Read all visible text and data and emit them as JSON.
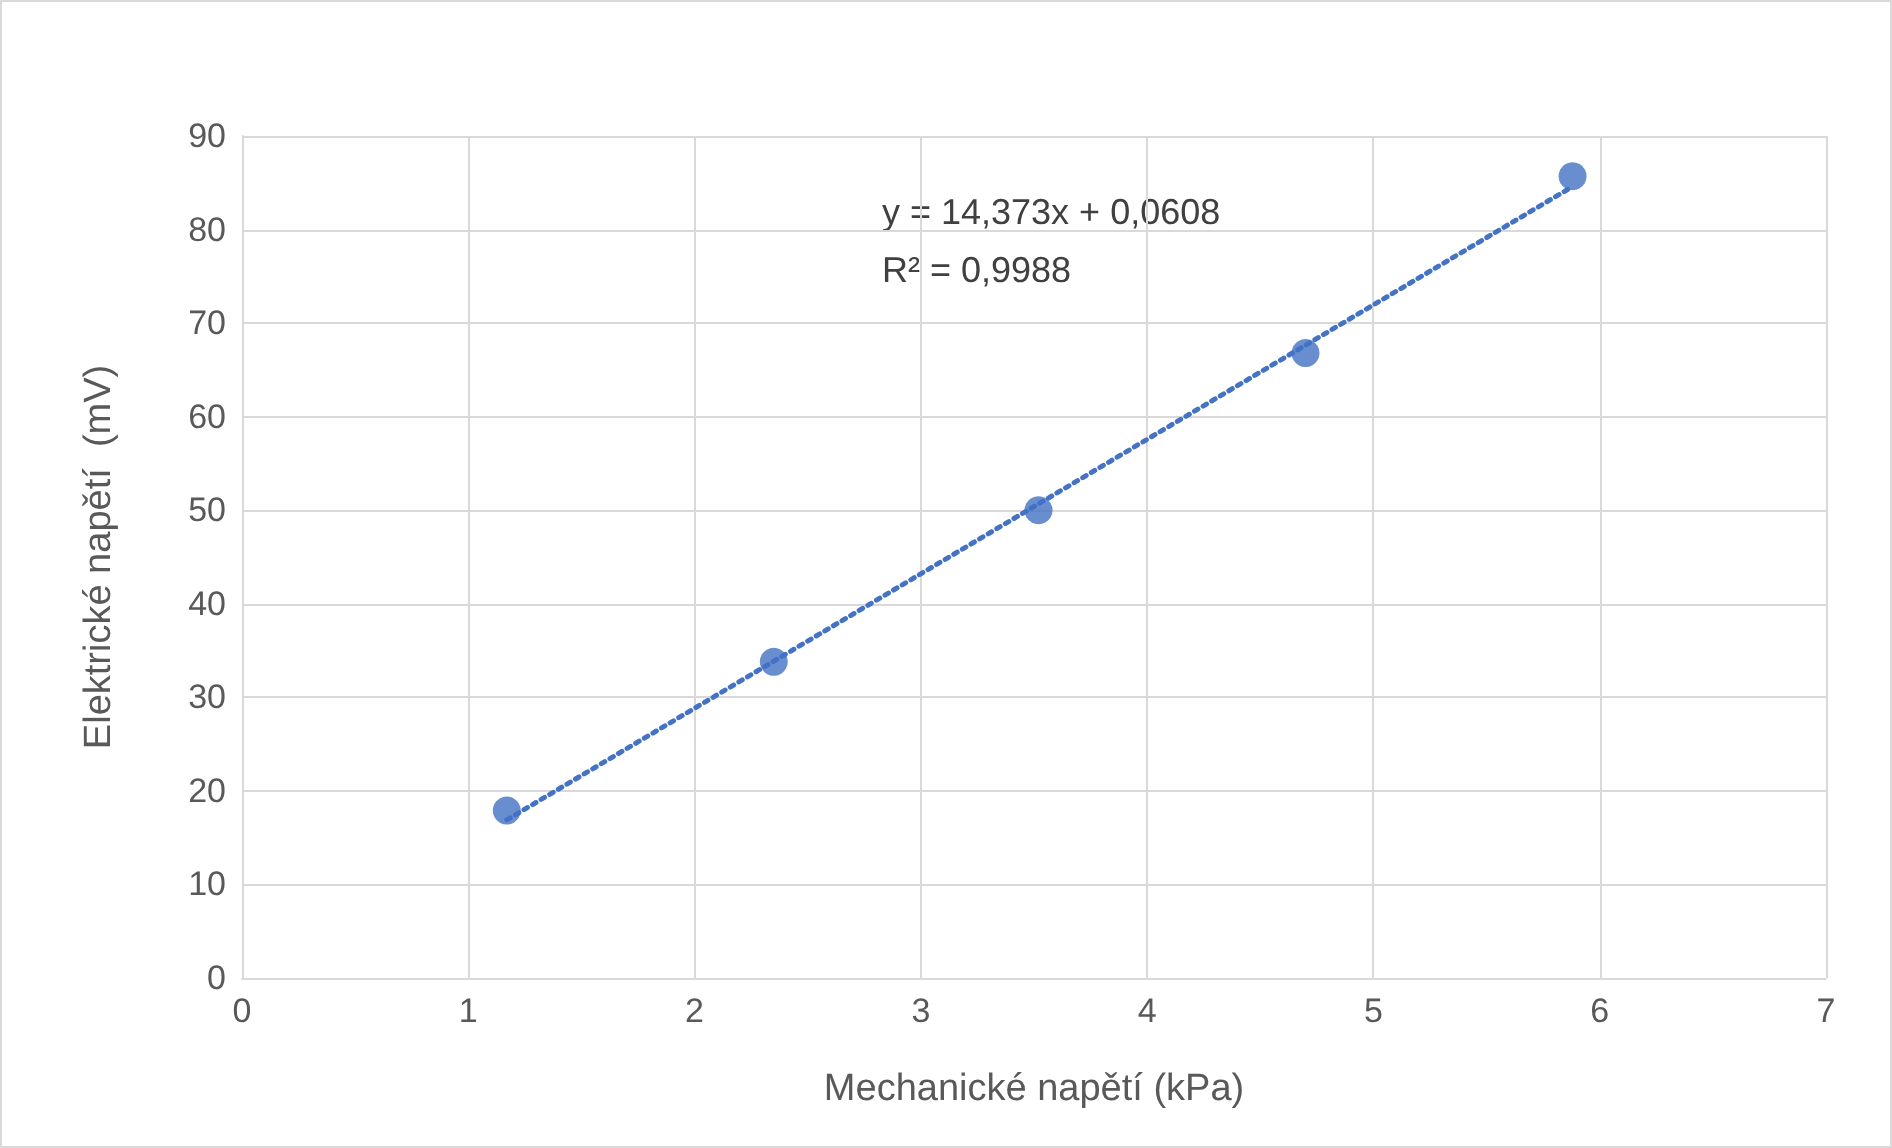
{
  "chart_data": {
    "type": "scatter",
    "xlabel": "Mechanické napětí (kPa)",
    "ylabel": "Elektrické napětí  (mV)",
    "annotations": [
      "y = 14,373x + 0,0608",
      "R² = 0,9988"
    ],
    "series": [
      {
        "color": "#4472c4",
        "x": [
          1.17,
          2.35,
          3.52,
          4.7,
          5.88
        ],
        "values": [
          17.9,
          33.8,
          50.0,
          66.8,
          85.7
        ],
        "marker": "circle"
      },
      {
        "type": "line",
        "color": "#4472c4",
        "x": [
          1.17,
          5.88
        ],
        "values": [
          16.9,
          84.6
        ],
        "marker": "none",
        "line_style": "dotted"
      }
    ],
    "xlim": [
      0,
      7
    ],
    "xticks": [
      0,
      1,
      2,
      3,
      4,
      5,
      6,
      7
    ],
    "ylim": [
      0,
      90
    ],
    "yticks": [
      0,
      10,
      20,
      30,
      40,
      50,
      60,
      70,
      80,
      90
    ],
    "grid": true
  }
}
